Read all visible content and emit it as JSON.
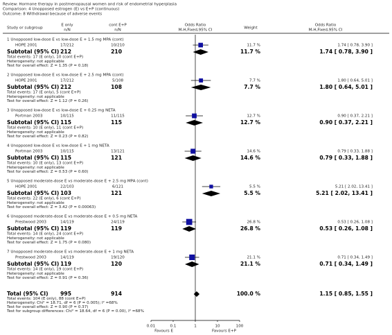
{
  "chart_data": {
    "type": "forest",
    "header": {
      "review": "Review:  Hormone therapy in postmenopausal women and risk of endometrial hyperplasia",
      "comparison": "Comparison:  4 Unopposed estrogen (E) vs E+P (continuous)",
      "outcome": "Outcome:  8 Withdrawal because of adverse events"
    },
    "columns": {
      "study": "Study or subgroup",
      "e_only": "E only",
      "e_only_sub": "n/N",
      "cont": "cont E+P",
      "cont_sub": "n/N",
      "plot": "Odds Ratio",
      "plot_sub": "M-H,Fixed,95% CI",
      "weight": "Weight",
      "ci": "Odds Ratio",
      "ci_sub": "M-H,Fixed,95% CI"
    },
    "groups": [
      {
        "title": "1 Unopposed low-dose E vs low-dose E + 1.5 mg MPA (cont)",
        "studies": [
          {
            "name": "HOPE 2001",
            "e_only": "17/212",
            "cont": "10/210",
            "weight": 11.7,
            "weight_label": "11.7 %",
            "or": 1.74,
            "lo": 0.78,
            "hi": 3.9,
            "ci_label": "1.74 [ 0.78, 3.90 ]"
          }
        ],
        "subtotal": {
          "label": "Subtotal (95% CI)",
          "e_only": 212,
          "cont": 210,
          "weight": 11.7,
          "weight_label": "11.7 %",
          "or": 1.74,
          "lo": 0.78,
          "hi": 3.9,
          "ci_label": "1.74 [ 0.78, 3.90 ]"
        },
        "notes": [
          "Total events: 17 (E only), 10 (cont E+P)",
          "Heterogeneity: not applicable",
          "Test for overall effect: Z = 1.35 (P = 0.18)"
        ]
      },
      {
        "title": "2 Unopposed low-dose E vs low-dose E + 2.5 mg MPA (cont)",
        "studies": [
          {
            "name": "HOPE 2001",
            "e_only": "17/212",
            "cont": "5/108",
            "weight": 7.7,
            "weight_label": "7.7 %",
            "or": 1.8,
            "lo": 0.64,
            "hi": 5.01,
            "ci_label": "1.80 [ 0.64, 5.01 ]"
          }
        ],
        "subtotal": {
          "label": "Subtotal (95% CI)",
          "e_only": 212,
          "cont": 108,
          "weight": 7.7,
          "weight_label": "7.7 %",
          "or": 1.8,
          "lo": 0.64,
          "hi": 5.01,
          "ci_label": "1.80 [ 0.64, 5.01 ]"
        },
        "notes": [
          "Total events: 17 (E only), 5 (cont E+P)",
          "Heterogeneity: not applicable",
          "Test for overall effect: Z = 1.12 (P = 0.26)"
        ]
      },
      {
        "title": "3 Unopposed low-dose E vs low-dose E + 0.25 mg NETA",
        "studies": [
          {
            "name": "Portman 2003",
            "e_only": "10/115",
            "cont": "11/115",
            "weight": 12.7,
            "weight_label": "12.7 %",
            "or": 0.9,
            "lo": 0.37,
            "hi": 2.21,
            "ci_label": "0.90 [ 0.37, 2.21 ]"
          }
        ],
        "subtotal": {
          "label": "Subtotal (95% CI)",
          "e_only": 115,
          "cont": 115,
          "weight": 12.7,
          "weight_label": "12.7 %",
          "or": 0.9,
          "lo": 0.37,
          "hi": 2.21,
          "ci_label": "0.90 [ 0.37, 2.21 ]"
        },
        "notes": [
          "Total events: 10 (E only), 11 (cont E+P)",
          "Heterogeneity: not applicable",
          "Test for overall effect: Z = 0.23 (P = 0.82)"
        ]
      },
      {
        "title": "4 Unopposed low-dose E vs low-dose E + 1 mg NETA",
        "studies": [
          {
            "name": "Portman 2003",
            "e_only": "10/115",
            "cont": "13/121",
            "weight": 14.6,
            "weight_label": "14.6 %",
            "or": 0.79,
            "lo": 0.33,
            "hi": 1.88,
            "ci_label": "0.79 [ 0.33, 1.88 ]"
          }
        ],
        "subtotal": {
          "label": "Subtotal (95% CI)",
          "e_only": 115,
          "cont": 121,
          "weight": 14.6,
          "weight_label": "14.6 %",
          "or": 0.79,
          "lo": 0.33,
          "hi": 1.88,
          "ci_label": "0.79 [ 0.33, 1.88 ]"
        },
        "notes": [
          "Total events: 10 (E only), 13 (cont E+P)",
          "Heterogeneity: not applicable",
          "Test for overall effect: Z = 0.53 (P = 0.60)"
        ]
      },
      {
        "title": "5 Unopposed moderate-dose E vs moderate-dose E + 2.5 mg MPA (cont)",
        "studies": [
          {
            "name": "HOPE 2001",
            "e_only": "22/103",
            "cont": "6/121",
            "weight": 5.5,
            "weight_label": "5.5 %",
            "or": 5.21,
            "lo": 2.02,
            "hi": 13.41,
            "ci_label": "5.21 [ 2.02, 13.41 ]"
          }
        ],
        "subtotal": {
          "label": "Subtotal (95% CI)",
          "e_only": 103,
          "cont": 121,
          "weight": 5.5,
          "weight_label": "5.5 %",
          "or": 5.21,
          "lo": 2.02,
          "hi": 13.41,
          "ci_label": "5.21 [ 2.02, 13.41 ]"
        },
        "notes": [
          "Total events: 22 (E only), 6 (cont E+P)",
          "Heterogeneity: not applicable",
          "Test for overall effect: Z = 3.42 (P = 0.00063)"
        ]
      },
      {
        "title": "6 Unopposed moderate-dose E vs moderate-dose E + 0.5 mg NETA",
        "studies": [
          {
            "name": "Prestwood 2003",
            "e_only": "14/119",
            "cont": "24/119",
            "weight": 26.8,
            "weight_label": "26.8 %",
            "or": 0.53,
            "lo": 0.26,
            "hi": 1.08,
            "ci_label": "0.53 [ 0.26, 1.08 ]"
          }
        ],
        "subtotal": {
          "label": "Subtotal (95% CI)",
          "e_only": 119,
          "cont": 119,
          "weight": 26.8,
          "weight_label": "26.8 %",
          "or": 0.53,
          "lo": 0.26,
          "hi": 1.08,
          "ci_label": "0.53 [ 0.26, 1.08 ]"
        },
        "notes": [
          "Total events: 14 (E only), 24 (cont E+P)",
          "Heterogeneity: not applicable",
          "Test for overall effect: Z = 1.75 (P = 0.080)"
        ]
      },
      {
        "title": "7 Unopposed moderate-dose E vs moderate-dose E + 1 mg NETA",
        "studies": [
          {
            "name": "Prestwood 2003",
            "e_only": "14/119",
            "cont": "19/120",
            "weight": 21.1,
            "weight_label": "21.1 %",
            "or": 0.71,
            "lo": 0.34,
            "hi": 1.49,
            "ci_label": "0.71 [ 0.34, 1.49 ]"
          }
        ],
        "subtotal": {
          "label": "Subtotal (95% CI)",
          "e_only": 119,
          "cont": 120,
          "weight": 21.1,
          "weight_label": "21.1 %",
          "or": 0.71,
          "lo": 0.34,
          "hi": 1.49,
          "ci_label": "0.71 [ 0.34, 1.49 ]"
        },
        "notes": [
          "Total events: 14 (E only), 19 (cont E+P)",
          "Heterogeneity: not applicable",
          "Test for overall effect: Z = 0.91 (P = 0.36)"
        ]
      }
    ],
    "total": {
      "label": "Total (95% CI)",
      "e_only": 995,
      "cont": 914,
      "weight": 100.0,
      "weight_label": "100.0 %",
      "or": 1.15,
      "lo": 0.85,
      "hi": 1.55,
      "ci_label": "1.15 [ 0.85, 1.55 ]",
      "notes": [
        "Total events: 104 (E only), 88 (cont E+P)",
        "Heterogeneity: Chi² = 18.71, df = 6 (P = 0.005); I² =68%",
        "Test for overall effect: Z = 0.90 (P = 0.37)",
        "Test for subgroup differences: Chi² = 18.64, df = 6 (P = 0.00), I² =68%"
      ]
    },
    "xlim": [
      0.01,
      100
    ],
    "xticks": [
      0.01,
      0.1,
      1,
      10,
      100
    ],
    "log_scale": true,
    "favours": [
      "Favours E",
      "Favours E+P"
    ],
    "marker_color": "#1010a0",
    "diamond_color": "#000000"
  }
}
